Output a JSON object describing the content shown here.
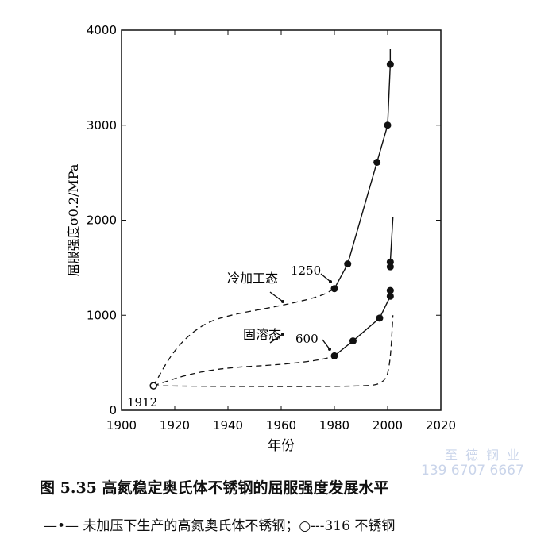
{
  "chart_data": {
    "type": "line",
    "xlabel": "年份",
    "ylabel": "屈服强度σ0.2/MPa",
    "xlim": [
      1900,
      2020
    ],
    "ylim": [
      0,
      4000
    ],
    "xticks": [
      1900,
      1920,
      1940,
      1960,
      1980,
      2000,
      2020
    ],
    "yticks": [
      0,
      1000,
      2000,
      3000,
      4000
    ],
    "grid": false,
    "series": [
      {
        "label": "冷加工态",
        "style": "solid-dots",
        "x": [
          1980,
          1985,
          1996,
          2000,
          2001
        ],
        "y": [
          1280,
          1540,
          2610,
          3000,
          3640
        ],
        "extend_to": [
          2001,
          3800
        ]
      },
      {
        "label": "冷加工态-2001",
        "style": "dots-line",
        "x": [
          2001,
          2001
        ],
        "y": [
          1510,
          1560
        ],
        "extend_to": [
          2002,
          2030
        ]
      },
      {
        "label": "固溶态",
        "style": "solid-dots",
        "x": [
          1980,
          1987,
          1997,
          2001,
          2001
        ],
        "y": [
          573,
          730,
          970,
          1200,
          1260
        ]
      },
      {
        "label": "冷加工态-early",
        "style": "dashed",
        "x": [
          1912,
          1920,
          1930,
          1940,
          1960,
          1975,
          1980
        ],
        "y": [
          258,
          650,
          900,
          1000,
          1100,
          1200,
          1280
        ]
      },
      {
        "label": "固溶态-early",
        "style": "dashed",
        "x": [
          1912,
          1925,
          1940,
          1960,
          1975,
          1980
        ],
        "y": [
          258,
          380,
          450,
          480,
          530,
          573
        ]
      },
      {
        "label": "316",
        "style": "dashed",
        "x": [
          1912,
          1940,
          1990,
          1999,
          2001,
          2002
        ],
        "y": [
          258,
          250,
          250,
          280,
          500,
          1000
        ]
      }
    ],
    "start_point": {
      "x": 1912,
      "y": 258
    },
    "annotations": {
      "cold": "冷加工态",
      "cold_value": "1250",
      "solution": "固溶态",
      "solution_value": "600",
      "start_year": "1912"
    }
  },
  "caption": {
    "title": "图 5.35   高氮稳定奥氏体不锈钢的屈服强度发展水平",
    "legend": "—•— 未加压下生产的高氮奥氏体不锈钢；○---316 不锈钢"
  },
  "watermark": {
    "line1": "至德钢业",
    "line2": "139 6707 6667"
  },
  "colors": {
    "ink": "#111111",
    "watermark": "#c9d4ea"
  }
}
